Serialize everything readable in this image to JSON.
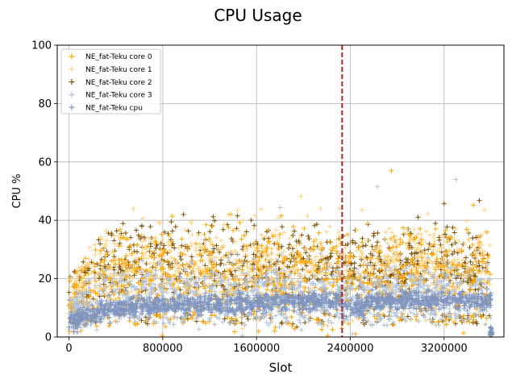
{
  "chart_data": {
    "type": "scatter",
    "title": "CPU Usage",
    "xlabel": "Slot",
    "ylabel": "CPU %",
    "xlim": [
      -100000,
      3710000
    ],
    "ylim": [
      0,
      100
    ],
    "x_ticks": [
      0,
      800000,
      1600000,
      2400000,
      3200000
    ],
    "x_tick_labels": [
      "0",
      "800000",
      "1600000",
      "2400000",
      "3200000"
    ],
    "y_ticks": [
      0,
      20,
      40,
      60,
      80,
      100
    ],
    "y_tick_labels": [
      "0",
      "20",
      "40",
      "60",
      "80",
      "100"
    ],
    "grid": true,
    "legend_position": "upper-left",
    "marker": "+",
    "vertical_line": {
      "x": 2330000,
      "color": "#b22222",
      "style": "dashed"
    },
    "series": [
      {
        "name": "NE_fat-Teku core 0",
        "color": "#ffa500",
        "approx_range": [
          0,
          3600000
        ],
        "typical_y": [
          4,
          38
        ],
        "peak_y": 57
      },
      {
        "name": "NE_fat-Teku core 1",
        "color": "#ffd280",
        "approx_range": [
          0,
          3600000
        ],
        "typical_y": [
          6,
          40
        ],
        "peak_y": 48
      },
      {
        "name": "NE_fat-Teku core 2",
        "color": "#7f5200",
        "approx_range": [
          0,
          3600000
        ],
        "typical_y": [
          5,
          38
        ],
        "peak_y": 46
      },
      {
        "name": "NE_fat-Teku core 3",
        "color": "#b0c4de",
        "approx_range": [
          0,
          3600000
        ],
        "typical_y": [
          4,
          30
        ],
        "peak_y": 54
      },
      {
        "name": "NE_fat-Teku cpu",
        "color": "#7f95c0",
        "approx_range": [
          0,
          3600000
        ],
        "typical_y": [
          6,
          16
        ],
        "peak_y": 17
      }
    ]
  }
}
